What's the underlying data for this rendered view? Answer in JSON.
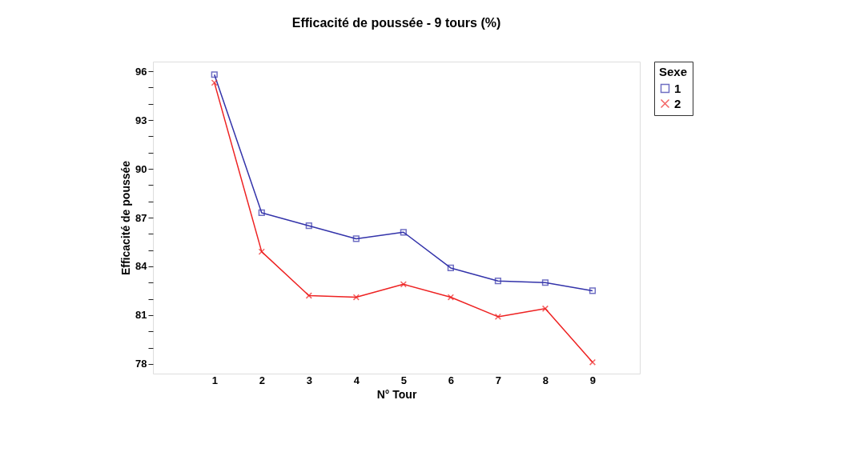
{
  "chart_data": {
    "type": "line",
    "title": "Efficacité de poussée - 9 tours (%)",
    "xlabel": "N° Tour",
    "ylabel": "Efficacité de poussée",
    "legend_title": "Sexe",
    "categories": [
      "1",
      "2",
      "3",
      "4",
      "5",
      "6",
      "7",
      "8",
      "9"
    ],
    "series": [
      {
        "name": "1",
        "color": "#3333aa",
        "marker": "square",
        "values": [
          95.8,
          87.3,
          86.5,
          85.7,
          86.1,
          83.9,
          83.1,
          83.0,
          82.5
        ]
      },
      {
        "name": "2",
        "color": "#ee2222",
        "marker": "cross",
        "values": [
          95.3,
          84.9,
          82.2,
          82.1,
          82.9,
          82.1,
          80.9,
          81.4,
          78.1
        ]
      }
    ],
    "ylim": [
      77.4,
      96.6
    ],
    "yticks": [
      78,
      {
        "value": 79,
        "label": null
      },
      {
        "value": 80,
        "label": null
      },
      81,
      {
        "value": 82,
        "label": null
      },
      {
        "value": 83,
        "label": null
      },
      84,
      {
        "value": 85,
        "label": null
      },
      {
        "value": 86,
        "label": null
      },
      87,
      {
        "value": 88,
        "label": null
      },
      {
        "value": 89,
        "label": null
      },
      90,
      {
        "value": 91,
        "label": null
      },
      {
        "value": 92,
        "label": null
      },
      93,
      {
        "value": 94,
        "label": null
      },
      {
        "value": 95,
        "label": null
      },
      96
    ],
    "grid": false,
    "legend": "top right",
    "line_style": "solid"
  }
}
